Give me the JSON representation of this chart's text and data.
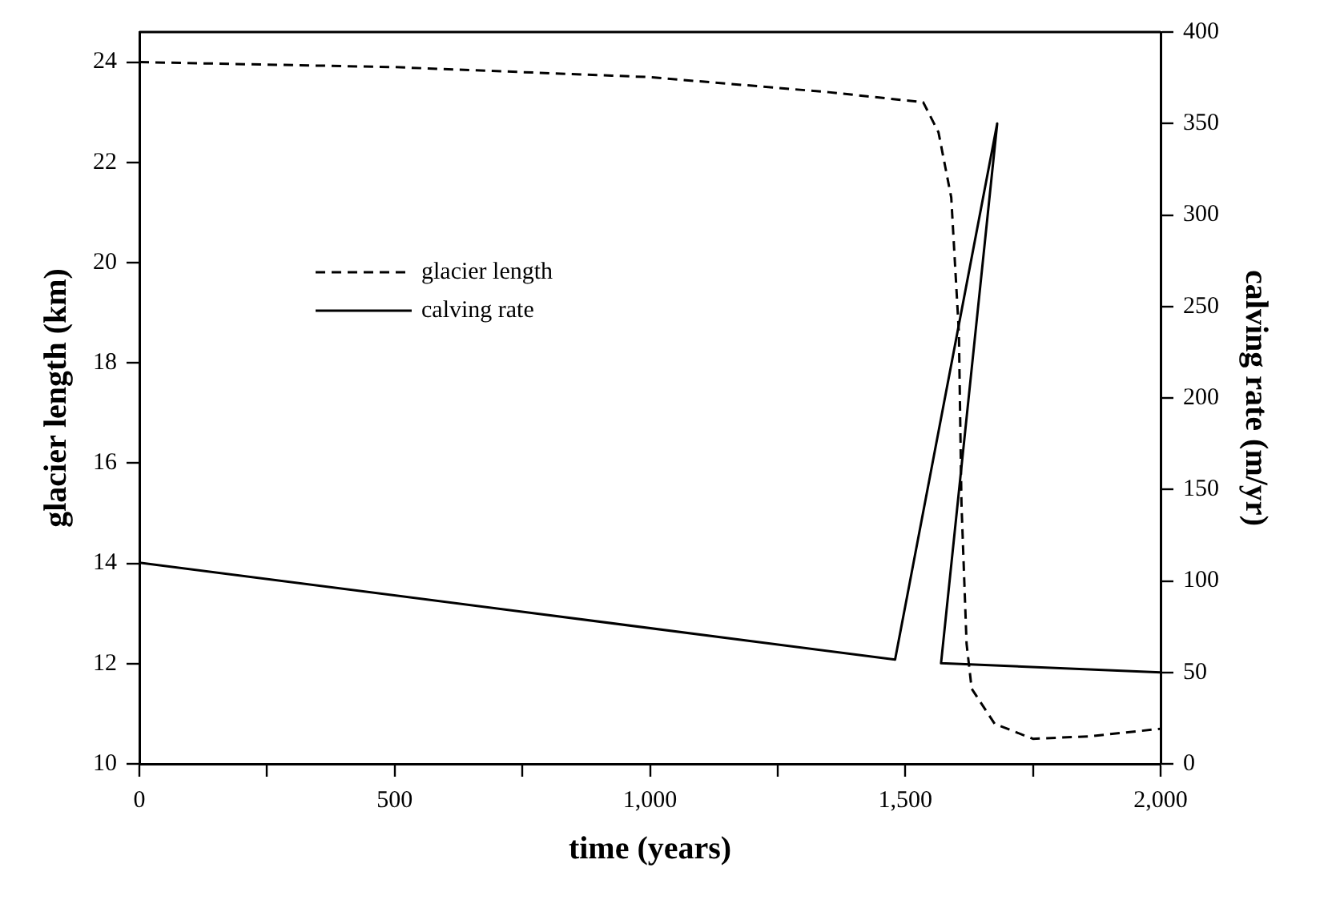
{
  "chart_data": {
    "type": "line",
    "xlabel": "time (years)",
    "ylabel": "glacier length (km)",
    "y2label": "calving rate (m/yr)",
    "xlim": [
      0,
      2000
    ],
    "xticks": [
      0,
      {
        "value": 250,
        "label": null
      },
      {
        "value": 500,
        "label": "500"
      },
      {
        "value": 750,
        "label": null
      },
      {
        "value": 1000,
        "label": "1,000"
      },
      {
        "value": 1250,
        "label": null
      },
      {
        "value": 1500,
        "label": "1,500"
      },
      {
        "value": 1750,
        "label": null
      },
      {
        "value": 2000,
        "label": "2,000"
      }
    ],
    "ylim": [
      10,
      24.6
    ],
    "yticks": [
      10,
      12,
      14,
      16,
      18,
      20,
      22,
      24
    ],
    "y2lim": [
      0,
      400
    ],
    "y2ticks": [
      0,
      50,
      100,
      150,
      200,
      250,
      300,
      350,
      400
    ],
    "grid": false,
    "legend": "top left",
    "marker": "none",
    "series": [
      {
        "name": "glacier length",
        "color": "#000000",
        "line_style": "dashed",
        "x": [
          0,
          500,
          1000,
          1350,
          1535,
          1565,
          1590,
          1605,
          1610,
          1620,
          1630,
          1675,
          1750,
          1860,
          2000
        ],
        "values": [
          24,
          23.9,
          23.7,
          23.4,
          23.2,
          22.6,
          21.3,
          18.6,
          15.2,
          12.4,
          11.5,
          10.8,
          10.5,
          10.55,
          10.7
        ]
      },
      {
        "name": "calving rate",
        "color": "#000000",
        "line_style": "solid",
        "axis": "y2",
        "x": [
          0,
          1480,
          1680,
          1570,
          2000
        ],
        "values": [
          110,
          57,
          350,
          55,
          50
        ]
      }
    ]
  }
}
